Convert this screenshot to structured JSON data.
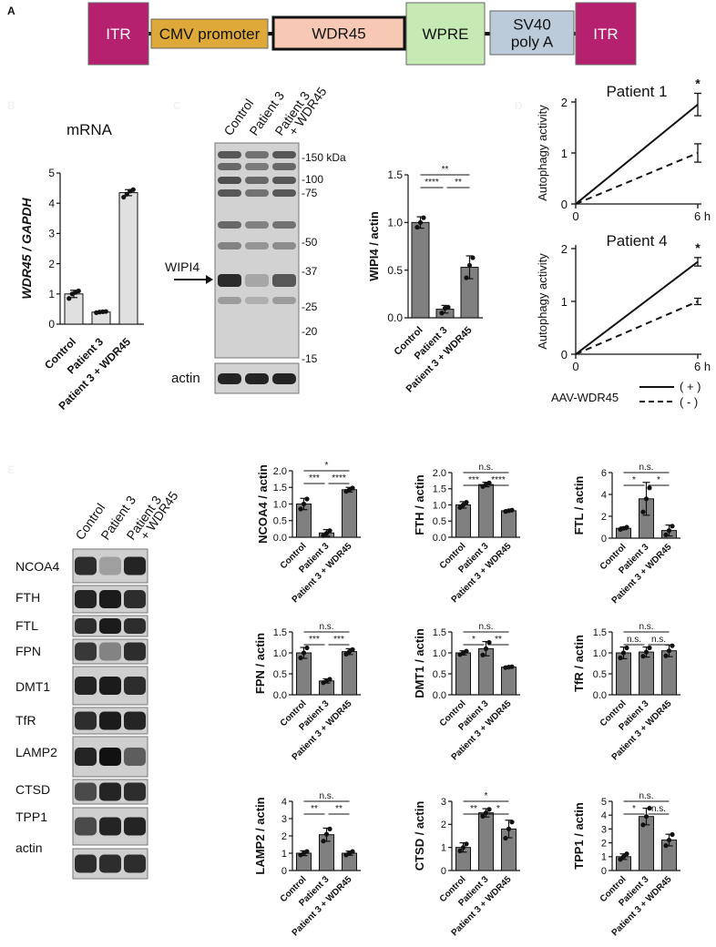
{
  "panel_letters": [
    "A",
    "B",
    "C",
    "D",
    "E"
  ],
  "construct": {
    "elements": [
      {
        "label": "ITR",
        "color": "#b5206f",
        "text_color": "#ffffff"
      },
      {
        "label": "CMV promoter",
        "color": "#dfa93a",
        "text_color": "#111111"
      },
      {
        "label": "WDR45",
        "color": "#f7c9b5",
        "text_color": "#111111"
      },
      {
        "label": "WPRE",
        "color": "#c6eab4",
        "text_color": "#111111"
      },
      {
        "label": "SV40\npoly A",
        "color": "#bccbd9",
        "text_color": "#111111"
      },
      {
        "label": "ITR",
        "color": "#b5206f",
        "text_color": "#ffffff"
      }
    ]
  },
  "colors": {
    "bar_fill": "#808080",
    "bar_light_fill": "#e0e0e0",
    "axis": "#111111"
  },
  "blot_b": {
    "lanes": [
      "Control",
      "Patient 3",
      "Patient 3\n+ WDR45"
    ],
    "markers": [
      "-150 kDa",
      "-100",
      "-75",
      "-50",
      "-37",
      "-25",
      "-20",
      "-15"
    ],
    "wipi4_label": "WIPI4",
    "actin_label": "actin"
  },
  "blot_d": {
    "lanes": [
      "Control",
      "Patient 3",
      "Patient 3\n+ WDR45"
    ],
    "rows": [
      "NCOA4",
      "FTH",
      "FTL",
      "FPN",
      "DMT1",
      "TfR",
      "LAMP2",
      "CTSD",
      "TPP1",
      "actin"
    ]
  },
  "autophagy_legend": {
    "title": "AAV-WDR45",
    "items": [
      {
        "label": "( + )",
        "style": "solid"
      },
      {
        "label": "( - )",
        "style": "dashed"
      }
    ]
  },
  "chart_data": [
    {
      "id": "mrna",
      "type": "bar",
      "title": "mRNA",
      "ylabel": "WDR45 / GAPDH",
      "categories": [
        "Control",
        "Patient 3",
        "Patient 3 + WDR45"
      ],
      "values": [
        1.0,
        0.4,
        4.35
      ],
      "errors": [
        0.12,
        0.03,
        0.1
      ],
      "points": [
        [
          0.85,
          1.0,
          1.05,
          1.1
        ],
        [
          0.38,
          0.4,
          0.41,
          0.42
        ],
        [
          4.2,
          4.3,
          4.4,
          4.45
        ]
      ],
      "ylim": [
        0,
        5
      ],
      "yticks": [
        0,
        1,
        2,
        3,
        4,
        5
      ],
      "fill": "light",
      "significance": []
    },
    {
      "id": "wipi4",
      "type": "bar",
      "ylabel": "WIPI4 / actin",
      "categories": [
        "Control",
        "Patient 3",
        "Patient 3 + WDR45"
      ],
      "values": [
        1.0,
        0.09,
        0.53
      ],
      "errors": [
        0.06,
        0.04,
        0.12
      ],
      "points": [
        [
          0.95,
          1.0,
          1.05
        ],
        [
          0.05,
          0.1,
          0.11
        ],
        [
          0.42,
          0.55,
          0.63
        ]
      ],
      "ylim": [
        0,
        1.5
      ],
      "yticks": [
        0,
        0.5,
        1.0,
        1.5
      ],
      "ytick_labels": [
        "0.0",
        "0.5",
        "1.0",
        "1.5"
      ],
      "significance": [
        {
          "from": 0,
          "to": 1,
          "label": "****"
        },
        {
          "from": 1,
          "to": 2,
          "label": "**"
        },
        {
          "from": 0,
          "to": 2,
          "label": "**"
        }
      ]
    },
    {
      "id": "patient1",
      "type": "line",
      "title": "Patient 1",
      "ylabel": "Autophagy activity",
      "x": [
        0,
        6
      ],
      "xticks": [
        "0",
        "6 h"
      ],
      "ylim": [
        0,
        2
      ],
      "yticks": [
        0,
        1,
        2
      ],
      "series": [
        {
          "name": "( + )",
          "style": "solid",
          "values": [
            0,
            1.95
          ],
          "error_end": 0.22
        },
        {
          "name": "( - )",
          "style": "dashed",
          "values": [
            0,
            1.0
          ],
          "error_end": 0.18
        }
      ],
      "annotation": "*"
    },
    {
      "id": "patient4",
      "type": "line",
      "title": "Patient 4",
      "ylabel": "Autophagy activity",
      "x": [
        0,
        6
      ],
      "xticks": [
        "0",
        "6 h"
      ],
      "ylim": [
        0,
        2
      ],
      "yticks": [
        0,
        1,
        2
      ],
      "series": [
        {
          "name": "( + )",
          "style": "solid",
          "values": [
            0,
            1.75
          ],
          "error_end": 0.08
        },
        {
          "name": "( - )",
          "style": "dashed",
          "values": [
            0,
            1.0
          ],
          "error_end": 0.06
        }
      ],
      "annotation": "*"
    },
    {
      "id": "ncoa4",
      "type": "bar",
      "ylabel": "NCOA4 / actin",
      "categories": [
        "Control",
        "Patient 3",
        "Patient 3 + WDR45"
      ],
      "values": [
        1.0,
        0.13,
        1.43
      ],
      "errors": [
        0.17,
        0.1,
        0.07
      ],
      "points": [
        [
          0.85,
          1.0,
          1.15
        ],
        [
          0.05,
          0.12,
          0.2
        ],
        [
          1.38,
          1.43,
          1.48
        ]
      ],
      "ylim": [
        0,
        2.0
      ],
      "yticks": [
        0,
        0.5,
        1.0,
        1.5,
        2.0
      ],
      "ytick_labels": [
        "0.0",
        "0.5",
        "1.0",
        "1.5",
        "2.0"
      ],
      "significance": [
        {
          "from": 0,
          "to": 1,
          "label": "***"
        },
        {
          "from": 1,
          "to": 2,
          "label": "****"
        },
        {
          "from": 0,
          "to": 2,
          "label": "*"
        }
      ]
    },
    {
      "id": "fth",
      "type": "bar",
      "ylabel": "FTH / actin",
      "categories": [
        "Control",
        "Patient 3",
        "Patient 3 + WDR45"
      ],
      "values": [
        1.0,
        1.63,
        0.82
      ],
      "errors": [
        0.1,
        0.07,
        0.03
      ],
      "points": [
        [
          0.92,
          1.0,
          1.08
        ],
        [
          1.57,
          1.63,
          1.68
        ],
        [
          0.8,
          0.82,
          0.84
        ]
      ],
      "ylim": [
        0,
        2.0
      ],
      "yticks": [
        0,
        0.5,
        1.0,
        1.5,
        2.0
      ],
      "ytick_labels": [
        "0.0",
        "0.5",
        "1.0",
        "1.5",
        "2.0"
      ],
      "significance": [
        {
          "from": 0,
          "to": 1,
          "label": "***"
        },
        {
          "from": 1,
          "to": 2,
          "label": "****"
        },
        {
          "from": 0,
          "to": 2,
          "label": "n.s."
        }
      ]
    },
    {
      "id": "ftl",
      "type": "bar",
      "ylabel": "FTL / actin",
      "categories": [
        "Control",
        "Patient 3",
        "Patient 3 + WDR45"
      ],
      "values": [
        0.9,
        3.6,
        0.7
      ],
      "errors": [
        0.12,
        1.5,
        0.5
      ],
      "points": [
        [
          0.8,
          0.9,
          1.0
        ],
        [
          2.4,
          3.6,
          4.6
        ],
        [
          0.3,
          0.7,
          1.1
        ]
      ],
      "ylim": [
        0,
        6
      ],
      "yticks": [
        0,
        2,
        4,
        6
      ],
      "significance": [
        {
          "from": 0,
          "to": 1,
          "label": "*"
        },
        {
          "from": 1,
          "to": 2,
          "label": "*"
        },
        {
          "from": 0,
          "to": 2,
          "label": "n.s."
        }
      ]
    },
    {
      "id": "fpn",
      "type": "bar",
      "ylabel": "FPN / actin",
      "categories": [
        "Control",
        "Patient 3",
        "Patient 3 + WDR45"
      ],
      "values": [
        1.0,
        0.33,
        1.03
      ],
      "errors": [
        0.13,
        0.05,
        0.07
      ],
      "points": [
        [
          0.88,
          1.0,
          1.12
        ],
        [
          0.29,
          0.33,
          0.37
        ],
        [
          0.97,
          1.03,
          1.08
        ]
      ],
      "ylim": [
        0,
        1.5
      ],
      "yticks": [
        0,
        0.5,
        1.0,
        1.5
      ],
      "ytick_labels": [
        "0.0",
        "0.5",
        "1.0",
        "1.5"
      ],
      "significance": [
        {
          "from": 0,
          "to": 1,
          "label": "***"
        },
        {
          "from": 1,
          "to": 2,
          "label": "***"
        },
        {
          "from": 0,
          "to": 2,
          "label": "n.s."
        }
      ]
    },
    {
      "id": "dmt1",
      "type": "bar",
      "ylabel": "DMT1 / actin",
      "categories": [
        "Control",
        "Patient 3",
        "Patient 3 + WDR45"
      ],
      "values": [
        1.0,
        1.1,
        0.66
      ],
      "errors": [
        0.05,
        0.17,
        0.02
      ],
      "points": [
        [
          0.96,
          1.0,
          1.04
        ],
        [
          0.95,
          1.1,
          1.25
        ],
        [
          0.65,
          0.66,
          0.67
        ]
      ],
      "ylim": [
        0,
        1.5
      ],
      "yticks": [
        0,
        0.5,
        1.0,
        1.5
      ],
      "ytick_labels": [
        "0.0",
        "0.5",
        "1.0",
        "1.5"
      ],
      "significance": [
        {
          "from": 0,
          "to": 1,
          "label": "*"
        },
        {
          "from": 1,
          "to": 2,
          "label": "**"
        },
        {
          "from": 0,
          "to": 2,
          "label": "n.s."
        }
      ]
    },
    {
      "id": "tfr",
      "type": "bar",
      "ylabel": "TfR / actin",
      "categories": [
        "Control",
        "Patient 3",
        "Patient 3 + WDR45"
      ],
      "values": [
        1.0,
        1.02,
        1.05
      ],
      "errors": [
        0.14,
        0.12,
        0.14
      ],
      "points": [
        [
          0.88,
          1.0,
          1.12
        ],
        [
          0.92,
          1.02,
          1.12
        ],
        [
          0.93,
          1.05,
          1.17
        ]
      ],
      "ylim": [
        0,
        1.5
      ],
      "yticks": [
        0,
        0.5,
        1.0,
        1.5
      ],
      "ytick_labels": [
        "0.0",
        "0.5",
        "1.0",
        "1.5"
      ],
      "significance": [
        {
          "from": 0,
          "to": 1,
          "label": "n.s."
        },
        {
          "from": 1,
          "to": 2,
          "label": "n.s."
        },
        {
          "from": 0,
          "to": 2,
          "label": "n.s."
        }
      ]
    },
    {
      "id": "lamp2",
      "type": "bar",
      "ylabel": "LAMP2 / actin",
      "categories": [
        "Control",
        "Patient 3",
        "Patient 3 + WDR45"
      ],
      "values": [
        1.0,
        2.07,
        1.0
      ],
      "errors": [
        0.14,
        0.38,
        0.12
      ],
      "points": [
        [
          0.9,
          1.0,
          1.1
        ],
        [
          1.7,
          2.1,
          2.4
        ],
        [
          0.9,
          1.0,
          1.1
        ]
      ],
      "ylim": [
        0,
        4
      ],
      "yticks": [
        0,
        1,
        2,
        3,
        4
      ],
      "significance": [
        {
          "from": 0,
          "to": 1,
          "label": "**"
        },
        {
          "from": 1,
          "to": 2,
          "label": "**"
        },
        {
          "from": 0,
          "to": 2,
          "label": "n.s."
        }
      ]
    },
    {
      "id": "ctsd",
      "type": "bar",
      "ylabel": "CTSD / actin",
      "categories": [
        "Control",
        "Patient 3",
        "Patient 3 + WDR45"
      ],
      "values": [
        1.0,
        2.5,
        1.8
      ],
      "errors": [
        0.2,
        0.18,
        0.38
      ],
      "points": [
        [
          0.85,
          1.0,
          1.15
        ],
        [
          2.35,
          2.5,
          2.65
        ],
        [
          1.4,
          1.8,
          2.1
        ]
      ],
      "ylim": [
        0,
        3
      ],
      "yticks": [
        0,
        1,
        2,
        3
      ],
      "significance": [
        {
          "from": 0,
          "to": 1,
          "label": "**"
        },
        {
          "from": 1,
          "to": 2,
          "label": "*"
        },
        {
          "from": 0,
          "to": 2,
          "label": "*"
        }
      ]
    },
    {
      "id": "tpp1",
      "type": "bar",
      "ylabel": "TPP1 / actin",
      "categories": [
        "Control",
        "Patient 3",
        "Patient 3 + WDR45"
      ],
      "values": [
        1.0,
        3.9,
        2.2
      ],
      "errors": [
        0.2,
        0.6,
        0.42
      ],
      "points": [
        [
          0.8,
          1.0,
          1.2
        ],
        [
          3.3,
          3.9,
          4.5
        ],
        [
          1.8,
          2.2,
          2.6
        ]
      ],
      "ylim": [
        0,
        5
      ],
      "yticks": [
        0,
        1,
        2,
        3,
        4,
        5
      ],
      "significance": [
        {
          "from": 0,
          "to": 1,
          "label": "*"
        },
        {
          "from": 1,
          "to": 2,
          "label": "n.s."
        },
        {
          "from": 0,
          "to": 2,
          "label": "n.s."
        }
      ]
    }
  ]
}
